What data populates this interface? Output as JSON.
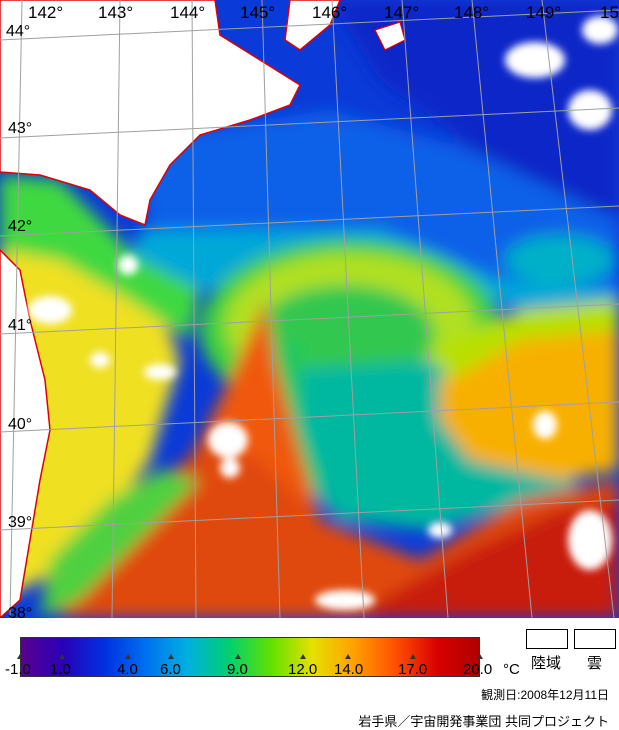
{
  "map": {
    "longitude_labels": [
      "142°",
      "143°",
      "144°",
      "145°",
      "146°",
      "147°",
      "148°",
      "149°",
      "15"
    ],
    "latitude_labels": [
      "44°",
      "43°",
      "42°",
      "41°",
      "40°",
      "39°",
      "38°"
    ],
    "land_color": "#ffffff",
    "coast_color": "#e00000",
    "grid_color": "#a0a0a0",
    "cloud_color": "#ffffff"
  },
  "legend": {
    "ticks": [
      "-1.0",
      "1.0",
      "4.0",
      "6.0",
      "9.0",
      "12.0",
      "14.0",
      "17.0",
      "20.0"
    ],
    "unit": "°C",
    "land_label": "陸域",
    "cloud_label": "雲",
    "gradient_colors": [
      "#5a0090",
      "#2a00b8",
      "#0030e0",
      "#0070f0",
      "#00b0e0",
      "#00d070",
      "#60e000",
      "#e8e000",
      "#ffa000",
      "#ff5000",
      "#d80000",
      "#b00000"
    ]
  },
  "observation_date": "観測日:2008年12月11日",
  "credit": "岩手県／宇宙開発事業団 共同プロジェクト"
}
